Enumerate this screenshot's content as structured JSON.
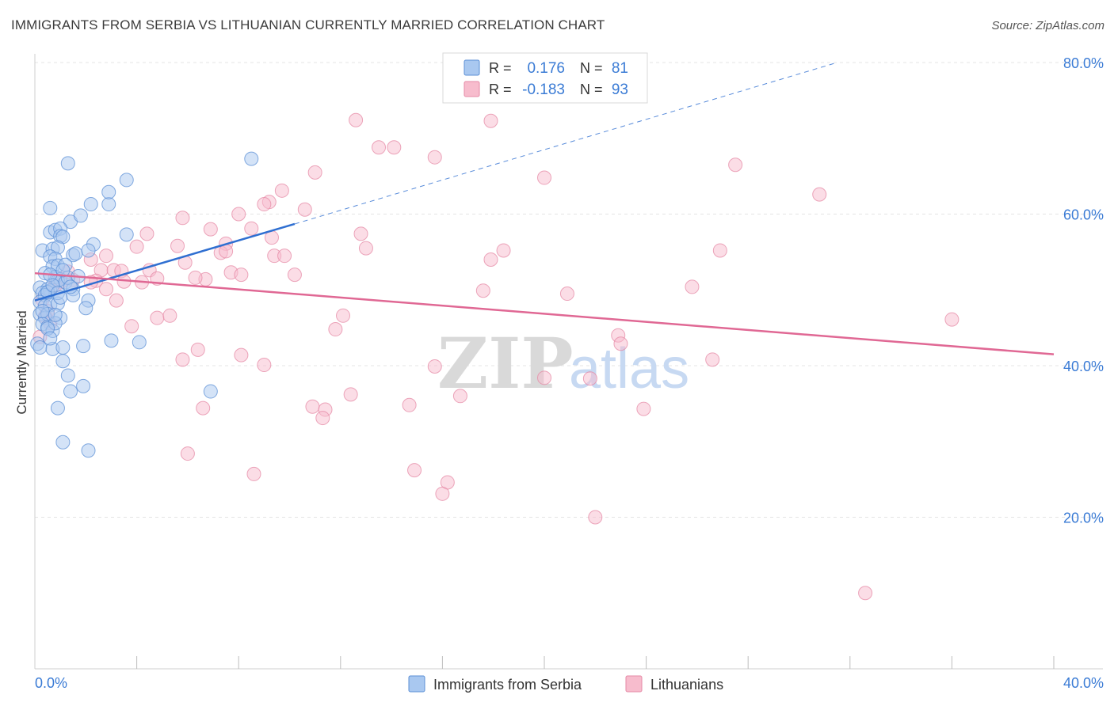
{
  "title": "IMMIGRANTS FROM SERBIA VS LITHUANIAN CURRENTLY MARRIED CORRELATION CHART",
  "source": "Source: ZipAtlas.com",
  "colors": {
    "serbia_fill": "#a9c8f0",
    "serbia_stroke": "#5b8fd6",
    "serbia_line": "#2f6fd1",
    "lith_fill": "#f7bccd",
    "lith_stroke": "#e58aa6",
    "lith_line": "#e06894",
    "axis_text": "#3a7bd5",
    "grid": "#e4e4e4"
  },
  "legend": {
    "rows": [
      {
        "r_label": "R =",
        "r_value": "0.176",
        "n_label": "N =",
        "n_value": "81"
      },
      {
        "r_label": "R =",
        "r_value": "-0.183",
        "n_label": "N =",
        "n_value": "93"
      }
    ]
  },
  "bottom_legend": {
    "serbia": "Immigrants from Serbia",
    "lith": "Lithuanians"
  },
  "watermark": {
    "zip": "ZIP",
    "atlas": "atlas"
  },
  "chart_data": {
    "type": "scatter",
    "title": "IMMIGRANTS FROM SERBIA VS LITHUANIAN CURRENTLY MARRIED CORRELATION CHART",
    "xlabel": "",
    "ylabel": "Currently Married",
    "xlim": [
      0,
      40
    ],
    "ylim": [
      0,
      80
    ],
    "x_tick_labels": [
      {
        "value": 0,
        "label": "0.0%"
      },
      {
        "value": 40,
        "label": "40.0%"
      }
    ],
    "y_tick_labels": [
      {
        "value": 20,
        "label": "20.0%"
      },
      {
        "value": 40,
        "label": "40.0%"
      },
      {
        "value": 60,
        "label": "60.0%"
      },
      {
        "value": 80,
        "label": "80.0%"
      }
    ],
    "x_minor_ticks": [
      4,
      8,
      12,
      16,
      20,
      24,
      28,
      32,
      36,
      40
    ],
    "grid": true,
    "series": [
      {
        "name": "Immigrants from Serbia",
        "R": 0.176,
        "N": 81,
        "trend": {
          "x": [
            0,
            10.2
          ],
          "y": [
            48.6,
            58.7
          ],
          "dashed_to": {
            "x": 31.5,
            "y": 80.0
          }
        },
        "points": [
          [
            1.3,
            66.7
          ],
          [
            0.6,
            60.8
          ],
          [
            1.4,
            59.0
          ],
          [
            1.8,
            59.8
          ],
          [
            2.2,
            61.3
          ],
          [
            2.9,
            61.3
          ],
          [
            2.9,
            62.9
          ],
          [
            3.6,
            64.5
          ],
          [
            0.6,
            57.6
          ],
          [
            0.8,
            57.9
          ],
          [
            1.0,
            58.1
          ],
          [
            1.0,
            57.1
          ],
          [
            1.1,
            57.0
          ],
          [
            2.3,
            56.0
          ],
          [
            3.6,
            57.3
          ],
          [
            0.3,
            55.2
          ],
          [
            0.7,
            55.4
          ],
          [
            0.9,
            55.6
          ],
          [
            0.6,
            54.4
          ],
          [
            0.8,
            54.1
          ],
          [
            1.5,
            54.6
          ],
          [
            1.6,
            54.8
          ],
          [
            2.1,
            55.2
          ],
          [
            0.7,
            53.1
          ],
          [
            0.9,
            53.2
          ],
          [
            1.2,
            53.3
          ],
          [
            0.8,
            51.7
          ],
          [
            1.0,
            51.4
          ],
          [
            0.9,
            51.2
          ],
          [
            1.2,
            51.0
          ],
          [
            0.2,
            50.3
          ],
          [
            0.5,
            50.1
          ],
          [
            0.6,
            49.9
          ],
          [
            0.3,
            49.6
          ],
          [
            0.4,
            49.3
          ],
          [
            0.5,
            49.7
          ],
          [
            1.5,
            50.1
          ],
          [
            1.5,
            49.3
          ],
          [
            0.2,
            48.4
          ],
          [
            0.4,
            47.9
          ],
          [
            0.6,
            48.0
          ],
          [
            0.9,
            48.2
          ],
          [
            2.1,
            48.6
          ],
          [
            2.0,
            47.6
          ],
          [
            0.2,
            46.8
          ],
          [
            0.4,
            46.3
          ],
          [
            0.5,
            46.8
          ],
          [
            1.0,
            46.3
          ],
          [
            0.3,
            45.5
          ],
          [
            0.5,
            45.1
          ],
          [
            0.7,
            44.6
          ],
          [
            0.8,
            45.6
          ],
          [
            0.1,
            42.9
          ],
          [
            0.2,
            42.4
          ],
          [
            0.7,
            42.2
          ],
          [
            1.1,
            42.4
          ],
          [
            1.9,
            42.6
          ],
          [
            3.0,
            43.3
          ],
          [
            4.1,
            43.1
          ],
          [
            1.1,
            40.6
          ],
          [
            1.3,
            38.7
          ],
          [
            1.9,
            37.3
          ],
          [
            1.4,
            36.6
          ],
          [
            6.9,
            36.6
          ],
          [
            0.9,
            34.4
          ],
          [
            1.1,
            29.9
          ],
          [
            2.1,
            28.8
          ],
          [
            8.5,
            67.3
          ],
          [
            0.4,
            52.2
          ],
          [
            0.6,
            52.0
          ],
          [
            0.7,
            50.6
          ],
          [
            0.9,
            49.6
          ],
          [
            1.3,
            51.6
          ],
          [
            1.7,
            51.8
          ],
          [
            0.3,
            47.2
          ],
          [
            0.8,
            46.7
          ],
          [
            1.1,
            52.6
          ],
          [
            0.5,
            44.9
          ],
          [
            1.4,
            50.4
          ],
          [
            0.6,
            43.6
          ],
          [
            1.0,
            49.0
          ]
        ]
      },
      {
        "name": "Lithuanians",
        "R": -0.183,
        "N": 93,
        "trend": {
          "x": [
            0,
            40
          ],
          "y": [
            52.2,
            41.5
          ]
        },
        "points": [
          [
            12.6,
            72.4
          ],
          [
            17.9,
            72.3
          ],
          [
            13.5,
            68.8
          ],
          [
            14.1,
            68.8
          ],
          [
            15.7,
            67.5
          ],
          [
            11.0,
            65.5
          ],
          [
            20.0,
            64.8
          ],
          [
            27.5,
            66.5
          ],
          [
            30.8,
            62.6
          ],
          [
            9.7,
            63.1
          ],
          [
            9.2,
            61.6
          ],
          [
            9.0,
            61.3
          ],
          [
            10.6,
            60.6
          ],
          [
            8.0,
            60.0
          ],
          [
            5.8,
            59.5
          ],
          [
            6.9,
            58.0
          ],
          [
            8.5,
            58.1
          ],
          [
            4.4,
            57.4
          ],
          [
            7.5,
            56.1
          ],
          [
            9.3,
            56.9
          ],
          [
            12.8,
            57.4
          ],
          [
            4.0,
            55.7
          ],
          [
            5.6,
            55.8
          ],
          [
            7.3,
            54.9
          ],
          [
            7.5,
            55.1
          ],
          [
            9.4,
            54.5
          ],
          [
            9.8,
            54.5
          ],
          [
            13.0,
            55.5
          ],
          [
            18.4,
            55.2
          ],
          [
            26.9,
            55.2
          ],
          [
            2.2,
            54.0
          ],
          [
            5.9,
            53.6
          ],
          [
            17.9,
            54.0
          ],
          [
            2.6,
            52.6
          ],
          [
            3.1,
            52.6
          ],
          [
            3.4,
            52.5
          ],
          [
            4.5,
            52.6
          ],
          [
            7.7,
            52.3
          ],
          [
            10.2,
            52.0
          ],
          [
            8.1,
            52.0
          ],
          [
            6.7,
            51.4
          ],
          [
            1.5,
            51.3
          ],
          [
            2.4,
            51.2
          ],
          [
            3.5,
            51.1
          ],
          [
            4.2,
            51.0
          ],
          [
            4.8,
            51.5
          ],
          [
            2.8,
            50.1
          ],
          [
            2.2,
            51.0
          ],
          [
            17.6,
            49.9
          ],
          [
            20.9,
            49.5
          ],
          [
            25.8,
            50.4
          ],
          [
            3.2,
            48.6
          ],
          [
            12.1,
            46.6
          ],
          [
            36.0,
            46.1
          ],
          [
            4.8,
            46.3
          ],
          [
            5.3,
            46.6
          ],
          [
            3.8,
            45.2
          ],
          [
            11.8,
            44.8
          ],
          [
            22.9,
            44.0
          ],
          [
            23.0,
            42.9
          ],
          [
            1.3,
            52.4
          ],
          [
            1.0,
            51.0
          ],
          [
            0.8,
            50.6
          ],
          [
            0.3,
            48.7
          ],
          [
            0.5,
            47.2
          ],
          [
            0.4,
            46.5
          ],
          [
            0.6,
            45.6
          ],
          [
            0.2,
            43.8
          ],
          [
            6.4,
            42.1
          ],
          [
            8.1,
            41.4
          ],
          [
            9.0,
            40.1
          ],
          [
            5.8,
            40.8
          ],
          [
            26.6,
            40.8
          ],
          [
            15.7,
            39.9
          ],
          [
            20.0,
            38.4
          ],
          [
            21.8,
            38.3
          ],
          [
            12.4,
            36.2
          ],
          [
            16.7,
            36.0
          ],
          [
            10.9,
            34.6
          ],
          [
            11.4,
            34.2
          ],
          [
            14.7,
            34.8
          ],
          [
            23.9,
            34.3
          ],
          [
            11.3,
            33.1
          ],
          [
            6.6,
            34.4
          ],
          [
            6.0,
            28.4
          ],
          [
            8.6,
            25.7
          ],
          [
            14.9,
            26.2
          ],
          [
            16.2,
            24.6
          ],
          [
            16.0,
            23.1
          ],
          [
            22.0,
            20.0
          ],
          [
            32.6,
            10.0
          ],
          [
            2.8,
            54.5
          ],
          [
            6.3,
            51.6
          ]
        ]
      }
    ]
  }
}
